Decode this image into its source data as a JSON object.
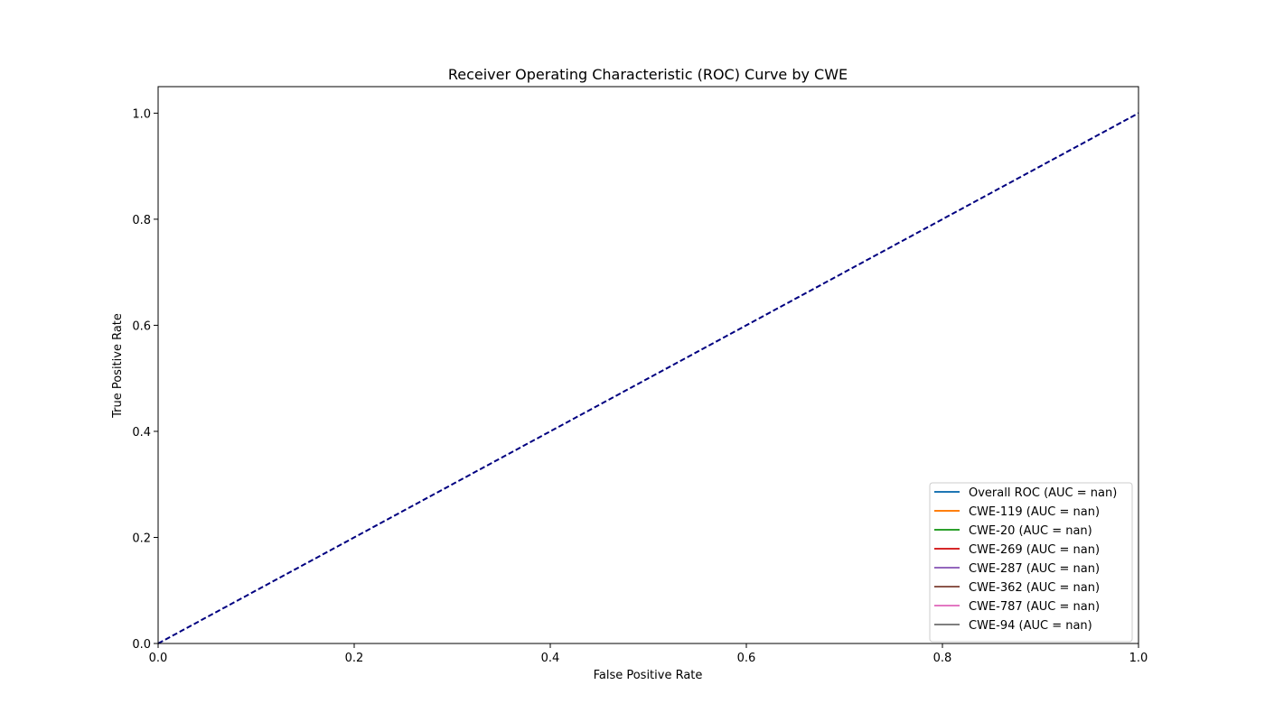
{
  "chart_data": {
    "type": "line",
    "title": "Receiver Operating Characteristic (ROC) Curve by CWE",
    "xlabel": "False Positive Rate",
    "ylabel": "True Positive Rate",
    "xlim": [
      0.0,
      1.0
    ],
    "ylim": [
      0.0,
      1.05
    ],
    "x_ticks": [
      0.0,
      0.2,
      0.4,
      0.6,
      0.8,
      1.0
    ],
    "y_ticks": [
      0.0,
      0.2,
      0.4,
      0.6,
      0.8,
      1.0
    ],
    "x_tick_labels": [
      "0.0",
      "0.2",
      "0.4",
      "0.6",
      "0.8",
      "1.0"
    ],
    "y_tick_labels": [
      "0.0",
      "0.2",
      "0.4",
      "0.6",
      "0.8",
      "1.0"
    ],
    "grid": false,
    "legend_position": "lower right",
    "reference_line": {
      "x": [
        0.0,
        1.0
      ],
      "y": [
        0.0,
        1.0
      ],
      "color": "#000080",
      "style": "dashed"
    },
    "series": [
      {
        "name": "Overall ROC (AUC = nan)",
        "color": "#1f77b4",
        "x": [],
        "y": []
      },
      {
        "name": "CWE-119 (AUC = nan)",
        "color": "#ff7f0e",
        "x": [],
        "y": []
      },
      {
        "name": "CWE-20 (AUC = nan)",
        "color": "#2ca02c",
        "x": [],
        "y": []
      },
      {
        "name": "CWE-269 (AUC = nan)",
        "color": "#d62728",
        "x": [],
        "y": []
      },
      {
        "name": "CWE-287 (AUC = nan)",
        "color": "#9467bd",
        "x": [],
        "y": []
      },
      {
        "name": "CWE-362 (AUC = nan)",
        "color": "#8c564b",
        "x": [],
        "y": []
      },
      {
        "name": "CWE-787 (AUC = nan)",
        "color": "#e377c2",
        "x": [],
        "y": []
      },
      {
        "name": "CWE-94 (AUC = nan)",
        "color": "#7f7f7f",
        "x": [],
        "y": []
      }
    ]
  }
}
